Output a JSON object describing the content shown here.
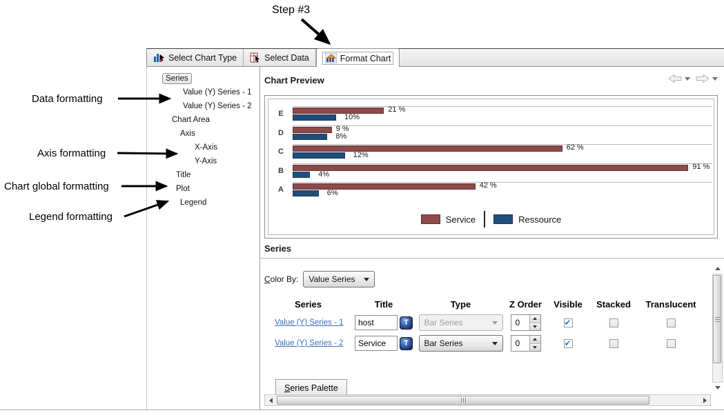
{
  "annotations": {
    "step": "Step #3",
    "labels": [
      "Data formatting",
      "Axis formatting",
      "Chart global formatting",
      "Legend formatting"
    ]
  },
  "tabs": [
    {
      "label": "Select Chart Type"
    },
    {
      "label": "Select Data"
    },
    {
      "label": "Format Chart"
    }
  ],
  "tree": {
    "items": [
      {
        "label": "Series",
        "indent": 22,
        "selected": true
      },
      {
        "label": "Value (Y) Series - 1",
        "indent": 48,
        "selected": false
      },
      {
        "label": "Value (Y) Series - 2",
        "indent": 48,
        "selected": false
      },
      {
        "label": "Chart Area",
        "indent": 32,
        "selected": false
      },
      {
        "label": "Axis",
        "indent": 44,
        "selected": false
      },
      {
        "label": "X-Axis",
        "indent": 65,
        "selected": false
      },
      {
        "label": "Y-Axis",
        "indent": 65,
        "selected": false
      },
      {
        "label": "Title",
        "indent": 38,
        "selected": false
      },
      {
        "label": "Plot",
        "indent": 38,
        "selected": false
      },
      {
        "label": "Legend",
        "indent": 44,
        "selected": false
      }
    ]
  },
  "preview": {
    "title": "Chart Preview"
  },
  "chart_data": {
    "type": "bar",
    "orientation": "horizontal",
    "categories": [
      "E",
      "D",
      "C",
      "B",
      "A"
    ],
    "series": [
      {
        "name": "Service",
        "color": "#8e4a49",
        "values": [
          21,
          9,
          62,
          91,
          42
        ],
        "labels": [
          "21 %",
          "9 %",
          "62 %",
          "91 %",
          "42 %"
        ]
      },
      {
        "name": "Ressource",
        "color": "#1f4e7b",
        "values": [
          10,
          8,
          12,
          4,
          6
        ],
        "labels": [
          "10%",
          "8%",
          "12%",
          "4%",
          "6%"
        ]
      }
    ],
    "xlim": [
      0,
      100
    ],
    "grid": true,
    "legend_position": "bottom"
  },
  "series_panel": {
    "title": "Series",
    "color_by_label": "Color By:",
    "color_by_value": "Value Series",
    "columns": [
      "Series",
      "Title",
      "Type",
      "Z Order",
      "Visible",
      "Stacked",
      "Translucent"
    ],
    "rows": [
      {
        "series": "Value (Y) Series - 1",
        "title": "host",
        "type": "Bar Series",
        "type_enabled": false,
        "z_order": "0",
        "visible": true,
        "stacked": false,
        "translucent": false
      },
      {
        "series": "Value (Y) Series - 2",
        "title": "Service",
        "type": "Bar Series",
        "type_enabled": true,
        "z_order": "0",
        "visible": true,
        "stacked": false,
        "translucent": false
      }
    ],
    "palette_tab": "Series Palette"
  },
  "colors": {
    "series_red": "#8e4a49",
    "series_blue": "#1f4e7b",
    "link_blue": "#3a70b8",
    "check_blue": "#3777bc"
  }
}
